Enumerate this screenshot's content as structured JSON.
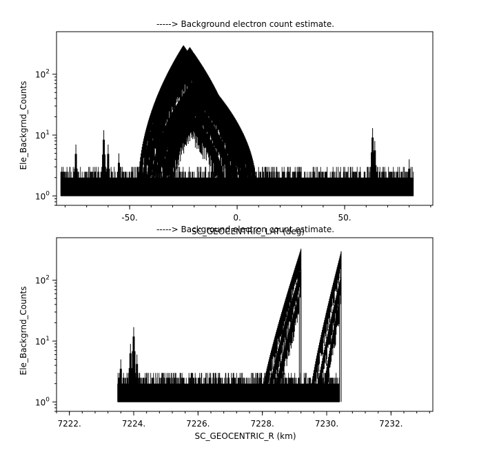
{
  "chart_data": [
    {
      "type": "line",
      "title": "-----> Background electron count estimate.",
      "xlabel": "SC_GEOCENTRIC_LAT (deg)",
      "ylabel": "Ele_Backgrnd_Counts",
      "xlim": [
        -84,
        91
      ],
      "ylim": [
        0.7,
        500
      ],
      "yscale": "log",
      "x_ticks": [
        -50,
        0,
        50
      ],
      "x_tick_labels": [
        "-50.",
        "0.",
        "50."
      ],
      "y_ticks": [
        1,
        10,
        100
      ],
      "y_tick_labels": [
        "10^0",
        "10^1",
        "10^2"
      ],
      "noise_floor": {
        "x_range": [
          -82,
          82
        ],
        "level_range": [
          1,
          3
        ]
      },
      "series": [
        {
          "peak_x": -25,
          "peak_y": 300,
          "x_range": [
            -46,
            -1
          ]
        },
        {
          "peak_x": -22,
          "peak_y": 280,
          "x_range": [
            -44,
            0
          ]
        },
        {
          "peak_x": -20,
          "peak_y": 220,
          "x_range": [
            -42,
            2
          ]
        },
        {
          "peak_x": -18,
          "peak_y": 100,
          "x_range": [
            -40,
            7
          ]
        },
        {
          "peak_x": -16,
          "peak_y": 90,
          "x_range": [
            -38,
            9
          ]
        },
        {
          "peak_x": -18,
          "peak_y": 60,
          "x_range": [
            -35,
            5
          ]
        },
        {
          "peak_x": -20,
          "peak_y": 40,
          "x_range": [
            -34,
            -2
          ]
        },
        {
          "peak_x": -22,
          "peak_y": 25,
          "x_range": [
            -32,
            -6
          ]
        }
      ],
      "spikes": [
        {
          "x": -75,
          "y": 7
        },
        {
          "x": -62,
          "y": 12
        },
        {
          "x": -60,
          "y": 7
        },
        {
          "x": -55,
          "y": 5
        },
        {
          "x": 63,
          "y": 13
        },
        {
          "x": 64,
          "y": 8
        },
        {
          "x": 80,
          "y": 4
        }
      ]
    },
    {
      "type": "line",
      "title": "-----> Background electron count estimate.",
      "xlabel": "SC_GEOCENTRIC_R (km)",
      "ylabel": "Ele_Backgrnd_Counts",
      "xlim": [
        7221.6,
        7233.3
      ],
      "ylim": [
        0.7,
        500
      ],
      "yscale": "log",
      "x_ticks": [
        7222,
        7224,
        7226,
        7228,
        7230,
        7232
      ],
      "x_tick_labels": [
        "7222.",
        "7224.",
        "7226.",
        "7228.",
        "7230.",
        "7232."
      ],
      "y_ticks": [
        1,
        10,
        100
      ],
      "y_tick_labels": [
        "10^0",
        "10^1",
        "10^2"
      ],
      "noise_floor": {
        "x_range": [
          7223.5,
          7230.4
        ],
        "level_range": [
          1,
          3
        ]
      },
      "series": [
        {
          "x_start": 7228.0,
          "x_end": 7229.2,
          "peak_y": 330
        },
        {
          "x_start": 7228.2,
          "x_end": 7229.2,
          "peak_y": 150
        },
        {
          "x_start": 7228.4,
          "x_end": 7229.15,
          "peak_y": 60
        },
        {
          "x_start": 7229.5,
          "x_end": 7230.45,
          "peak_y": 300
        },
        {
          "x_start": 7229.7,
          "x_end": 7230.45,
          "peak_y": 120
        },
        {
          "x_start": 7229.9,
          "x_end": 7230.4,
          "peak_y": 50
        }
      ],
      "spikes": [
        {
          "x": 7224.0,
          "y": 17
        },
        {
          "x": 7223.9,
          "y": 9
        },
        {
          "x": 7224.1,
          "y": 6
        },
        {
          "x": 7223.6,
          "y": 5
        }
      ]
    }
  ]
}
